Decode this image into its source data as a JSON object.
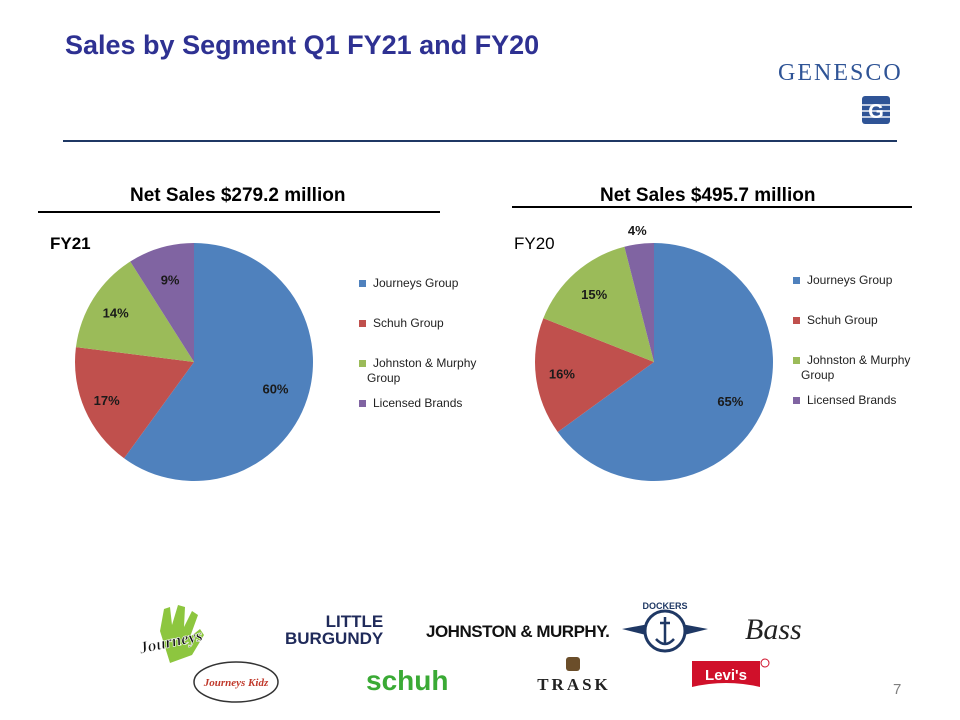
{
  "slide": {
    "title": "Sales by Segment Q1 FY21 and FY20",
    "page_number": "7",
    "logo": {
      "text": "GENESCO",
      "mark": "G"
    }
  },
  "colors": {
    "title": "#2e3192",
    "journeys": "#4f81bd",
    "schuh": "#c0504d",
    "jm": "#9bbb59",
    "licensed": "#8064a2"
  },
  "chart_data": [
    {
      "type": "pie",
      "title": "Net Sales $279.2 million",
      "period_label": "FY21",
      "categories": [
        "Journeys Group",
        "Schuh Group",
        "Johnston & Murphy Group",
        "Licensed Brands"
      ],
      "values": [
        60,
        17,
        14,
        9
      ],
      "labels": [
        "60%",
        "17%",
        "14%",
        "9%"
      ],
      "legend": {
        "items": [
          "Journeys Group",
          "Schuh Group",
          "Johnston & Murphy",
          "Licensed Brands"
        ],
        "jm_line2": "Group",
        "placement": "right"
      }
    },
    {
      "type": "pie",
      "title": "Net Sales $495.7 million",
      "period_label": "FY20",
      "categories": [
        "Journeys Group",
        "Schuh Group",
        "Johnston & Murphy Group",
        "Licensed Brands"
      ],
      "values": [
        65,
        16,
        15,
        4
      ],
      "labels": [
        "65%",
        "16%",
        "15%",
        "4%"
      ],
      "legend": {
        "items": [
          "Journeys Group",
          "Schuh Group",
          "Johnston & Murphy",
          "Licensed Brands"
        ],
        "jm_line2": "Group",
        "placement": "right"
      }
    }
  ],
  "brands": {
    "journeys": "Journeys",
    "journeys_kidz": "Journeys Kidz",
    "little_burgundy_1": "LITTLE",
    "little_burgundy_2": "BURGUNDY",
    "schuh": "schuh",
    "johnston_murphy": "JOHNSTON & MURPHY.",
    "trask": "TRASK",
    "dockers": "DOCKERS",
    "levis": "Levi's",
    "bass": "Bass"
  }
}
